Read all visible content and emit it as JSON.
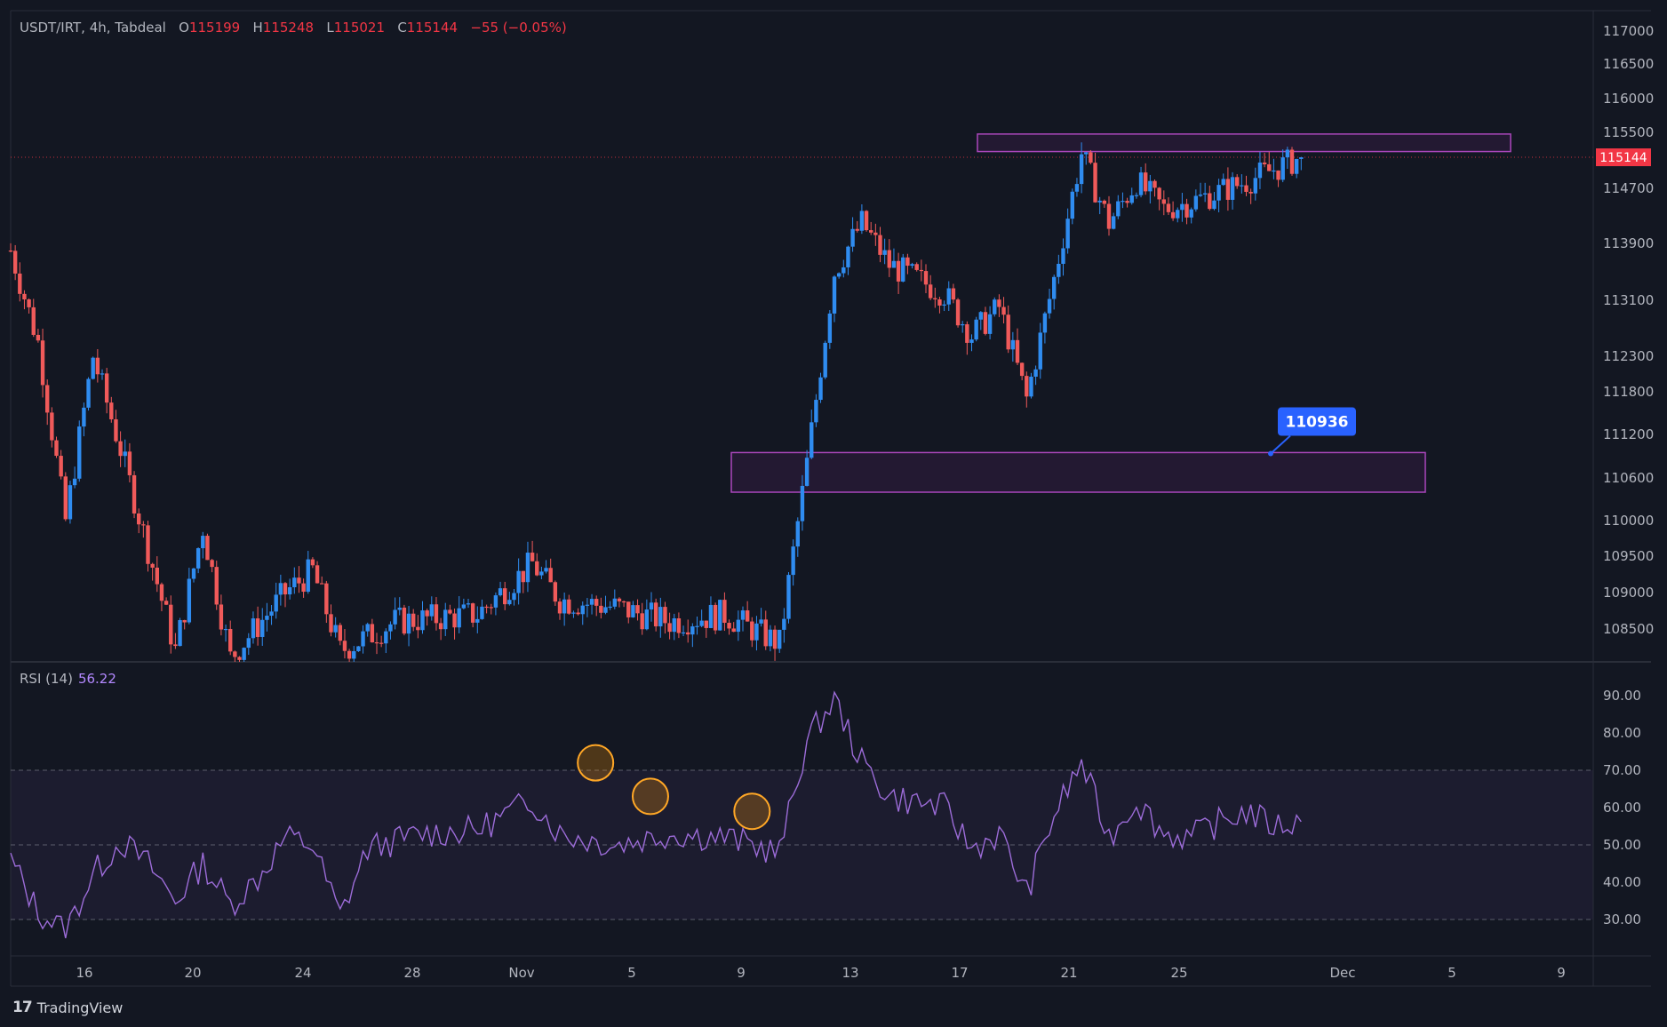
{
  "header": {
    "symbol": "USDT/IRT, 4h, Tabdeal",
    "open_label": "O",
    "open": "115199",
    "high_label": "H",
    "high": "115248",
    "low_label": "L",
    "low": "115021",
    "close_label": "C",
    "close": "115144",
    "change": "−55 (−0.05%)"
  },
  "rsi": {
    "label": "RSI (14)",
    "value": "56.22"
  },
  "brand": {
    "logo": "17",
    "name": "TradingView"
  },
  "colors": {
    "up": "#2f8cf0",
    "down": "#f05a5a",
    "rsi": "#9c6cd8",
    "zone": "#9c27b0",
    "bg": "#131722"
  },
  "chart_data": [
    {
      "type": "candlestick",
      "x_ticks": [
        "16",
        "20",
        "24",
        "28",
        "Nov",
        "5",
        "9",
        "13",
        "17",
        "21",
        "25",
        "Dec",
        "5",
        "9"
      ],
      "y_ticks": [
        108500,
        109000,
        109500,
        110000,
        110600,
        111200,
        111800,
        112300,
        113100,
        113900,
        114700,
        115500,
        116000,
        116500,
        117000
      ],
      "ylim": [
        108050,
        117300
      ],
      "last_price": {
        "value": "115144",
        "color": "#f23645"
      },
      "zones": [
        {
          "from": 115150,
          "to": 115400
        },
        {
          "from": 110400,
          "to": 110950
        }
      ],
      "annotation": {
        "label": "110936",
        "value": 110936
      },
      "approx_path": [
        {
          "date": "Oct 13",
          "close": 113800
        },
        {
          "date": "Oct 14",
          "close": 112500
        },
        {
          "date": "Oct 15",
          "close": 110000
        },
        {
          "date": "Oct 16",
          "close": 112300
        },
        {
          "date": "Oct 17",
          "close": 111000
        },
        {
          "date": "Oct 19",
          "close": 108200
        },
        {
          "date": "Oct 20",
          "close": 109900
        },
        {
          "date": "Oct 21",
          "close": 108100
        },
        {
          "date": "Oct 23",
          "close": 109000
        },
        {
          "date": "Oct 24",
          "close": 109300
        },
        {
          "date": "Oct 25",
          "close": 108200
        },
        {
          "date": "Oct 27",
          "close": 108600
        },
        {
          "date": "Oct 30",
          "close": 108700
        },
        {
          "date": "Nov 1",
          "close": 109400
        },
        {
          "date": "Nov 2",
          "close": 108900
        },
        {
          "date": "Nov 4",
          "close": 108800
        },
        {
          "date": "Nov 6",
          "close": 108600
        },
        {
          "date": "Nov 8",
          "close": 108700
        },
        {
          "date": "Nov 10",
          "close": 108300
        },
        {
          "date": "Nov 11",
          "close": 110800
        },
        {
          "date": "Nov 12",
          "close": 113500
        },
        {
          "date": "Nov 13",
          "close": 114200
        },
        {
          "date": "Nov 14",
          "close": 113600
        },
        {
          "date": "Nov 16",
          "close": 113200
        },
        {
          "date": "Nov 17",
          "close": 112600
        },
        {
          "date": "Nov 18",
          "close": 113000
        },
        {
          "date": "Nov 19",
          "close": 111700
        },
        {
          "date": "Nov 20",
          "close": 113400
        },
        {
          "date": "Nov 21",
          "close": 115200
        },
        {
          "date": "Nov 22",
          "close": 114200
        },
        {
          "date": "Nov 23",
          "close": 114800
        },
        {
          "date": "Nov 24",
          "close": 114400
        },
        {
          "date": "Nov 25",
          "close": 114500
        },
        {
          "date": "Nov 27",
          "close": 114800
        },
        {
          "date": "Nov 29",
          "close": 115144
        }
      ]
    },
    {
      "type": "line",
      "name": "RSI (14)",
      "y_ticks": [
        30,
        40,
        50,
        60,
        70,
        80,
        90
      ],
      "ylim": [
        20,
        95
      ],
      "bands": [
        30,
        50,
        70
      ],
      "highlights": [
        72,
        63,
        59
      ],
      "points": [
        {
          "date": "Oct 13",
          "value": 46
        },
        {
          "date": "Oct 14",
          "value": 32
        },
        {
          "date": "Oct 15",
          "value": 27
        },
        {
          "date": "Oct 16",
          "value": 42
        },
        {
          "date": "Oct 17",
          "value": 51
        },
        {
          "date": "Oct 18",
          "value": 45
        },
        {
          "date": "Oct 19",
          "value": 35
        },
        {
          "date": "Oct 20",
          "value": 45
        },
        {
          "date": "Oct 21",
          "value": 34
        },
        {
          "date": "Oct 22",
          "value": 41
        },
        {
          "date": "Oct 23",
          "value": 52
        },
        {
          "date": "Oct 24",
          "value": 50
        },
        {
          "date": "Oct 25",
          "value": 31
        },
        {
          "date": "Oct 26",
          "value": 49
        },
        {
          "date": "Oct 28",
          "value": 53
        },
        {
          "date": "Oct 30",
          "value": 54
        },
        {
          "date": "Nov 1",
          "value": 62
        },
        {
          "date": "Nov 2",
          "value": 53
        },
        {
          "date": "Nov 4",
          "value": 50
        },
        {
          "date": "Nov 6",
          "value": 53
        },
        {
          "date": "Nov 8",
          "value": 52
        },
        {
          "date": "Nov 10",
          "value": 48
        },
        {
          "date": "Nov 11",
          "value": 78
        },
        {
          "date": "Nov 12",
          "value": 89
        },
        {
          "date": "Nov 13",
          "value": 72
        },
        {
          "date": "Nov 14",
          "value": 63
        },
        {
          "date": "Nov 16",
          "value": 60
        },
        {
          "date": "Nov 17",
          "value": 49
        },
        {
          "date": "Nov 18",
          "value": 53
        },
        {
          "date": "Nov 19",
          "value": 37
        },
        {
          "date": "Nov 20",
          "value": 58
        },
        {
          "date": "Nov 21",
          "value": 72
        },
        {
          "date": "Nov 22",
          "value": 52
        },
        {
          "date": "Nov 23",
          "value": 62
        },
        {
          "date": "Nov 24",
          "value": 53
        },
        {
          "date": "Nov 25",
          "value": 52
        },
        {
          "date": "Nov 26",
          "value": 56
        },
        {
          "date": "Nov 27",
          "value": 59
        },
        {
          "date": "Nov 28",
          "value": 55
        },
        {
          "date": "Nov 29",
          "value": 56.22
        }
      ]
    }
  ]
}
